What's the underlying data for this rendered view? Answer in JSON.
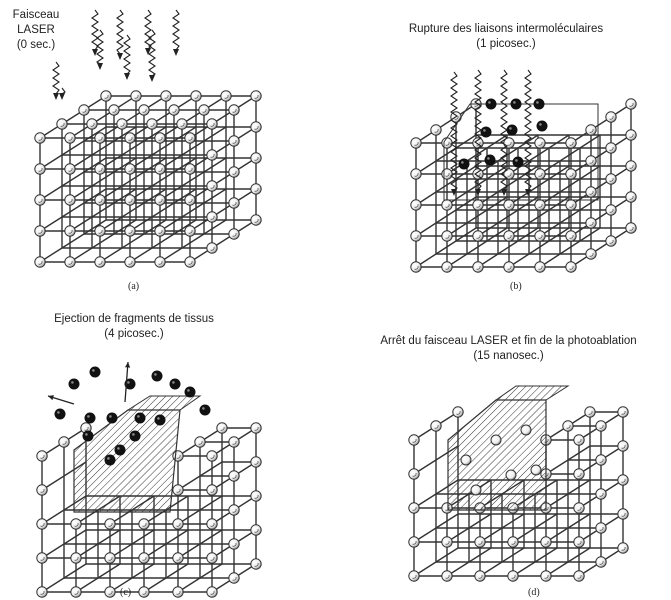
{
  "panels": [
    {
      "id": "a",
      "caption_lines": [
        "Faisceau",
        "LASER",
        "(0 sec.)"
      ],
      "sublabel": "(a)"
    },
    {
      "id": "b",
      "caption_lines": [
        "Rupture des liaisons intermoléculaires",
        "(1  picosec.)"
      ],
      "sublabel": "(b)"
    },
    {
      "id": "c",
      "caption_lines": [
        "Ejection de fragments de tissus",
        "(4  picosec.)"
      ],
      "sublabel": "(c)"
    },
    {
      "id": "d",
      "caption_lines": [
        "Arrêt du faisceau LASER et fin de la photoablation",
        "(15  nanosec.)"
      ],
      "sublabel": "(d)"
    }
  ],
  "colors": {
    "line": "#333333",
    "node_fill": "#ffffff",
    "fragment": "#111111"
  },
  "icons": {
    "node": "atom-node-icon",
    "laser": "laser-beam-icon",
    "fragment": "tissue-fragment-icon",
    "arrow": "ejection-arrow-icon"
  }
}
